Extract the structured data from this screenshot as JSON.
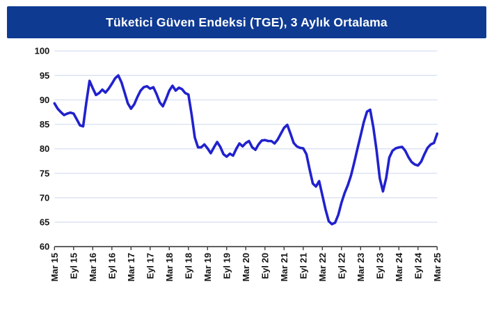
{
  "title_bar": {
    "text": "Tüketici Güven Endeksi (TGE), 3 Aylık Ortalama",
    "background": "#0E3A92",
    "text_color": "#FFFFFF"
  },
  "chart_data": {
    "type": "line",
    "title": "Tüketici Güven Endeksi (TGE), 3 Aylık Ortalama",
    "xlabel": "",
    "ylabel": "",
    "ylim": [
      60,
      100
    ],
    "y_ticks": [
      60,
      65,
      70,
      75,
      80,
      85,
      90,
      95,
      100
    ],
    "grid": "horizontal",
    "gridline_color": "#D9E1F2",
    "axis_color": "#3B3B3B",
    "legend_position": "none",
    "x_tick_labels": [
      "Mar 15",
      "Eyl 15",
      "Mar 16",
      "Eyl 16",
      "Mar 17",
      "Eyl 17",
      "Mar 18",
      "Eyl 18",
      "Mar 19",
      "Eyl 19",
      "Mar 20",
      "Eyl 20",
      "Mar 21",
      "Eyl 21",
      "Mar 22",
      "Eyl 22",
      "Mar 23",
      "Eyl 23",
      "Mar 24",
      "Eyl 24",
      "Mar 25"
    ],
    "x_tick_interval_months": 6,
    "x_start": "Mar 2015",
    "x_end": "Mar 2025",
    "series": [
      {
        "name": "TGE 3 aylık ortalama",
        "color": "#2121CE",
        "frequency": "monthly",
        "values": [
          89.3,
          88.2,
          87.5,
          86.9,
          87.2,
          87.4,
          87.2,
          86.0,
          84.8,
          84.6,
          89.5,
          93.9,
          92.4,
          91.0,
          91.4,
          92.1,
          91.5,
          92.3,
          93.3,
          94.4,
          95.0,
          93.6,
          91.5,
          89.3,
          88.2,
          89.1,
          90.6,
          91.9,
          92.6,
          92.8,
          92.3,
          92.6,
          91.2,
          89.5,
          88.7,
          90.2,
          91.9,
          92.9,
          91.9,
          92.5,
          92.2,
          91.4,
          91.1,
          87.0,
          82.3,
          80.3,
          80.3,
          80.9,
          80.1,
          79.1,
          80.3,
          81.4,
          80.4,
          78.9,
          78.4,
          79.0,
          78.6,
          80.0,
          81.1,
          80.5,
          81.2,
          81.6,
          80.3,
          79.8,
          80.9,
          81.7,
          81.8,
          81.6,
          81.6,
          81.1,
          81.9,
          83.1,
          84.3,
          84.9,
          83.1,
          81.2,
          80.5,
          80.2,
          80.1,
          78.9,
          75.8,
          72.9,
          72.3,
          73.4,
          70.5,
          67.6,
          65.2,
          64.6,
          64.9,
          66.5,
          69.0,
          71.0,
          72.6,
          74.6,
          77.2,
          80.0,
          82.7,
          85.5,
          87.6,
          88.0,
          84.4,
          79.7,
          74.0,
          71.3,
          74.0,
          78.2,
          79.6,
          80.1,
          80.3,
          80.4,
          79.6,
          78.3,
          77.3,
          76.8,
          76.6,
          77.4,
          78.9,
          80.2,
          80.9,
          81.2,
          83.1
        ]
      }
    ]
  }
}
